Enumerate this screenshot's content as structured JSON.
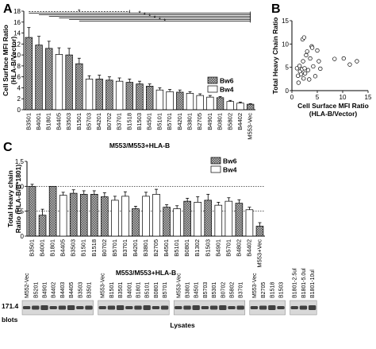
{
  "panel_labels": {
    "A": "A",
    "B": "B",
    "C": "C"
  },
  "colors": {
    "bw6": "#8a8a8a",
    "bw4": "#ffffff",
    "axis": "#000000",
    "blot_bg": "#d8d8d8",
    "band": "#1a1a1a"
  },
  "chart_data": [
    {
      "panel": "A",
      "type": "bar",
      "ylabel": "Cell Surface MFI Ratio (HLA-B/Vector)",
      "ylabel_lines": [
        "Cell Surface MFI Ratio",
        "(HLA-B/Vector)"
      ],
      "xlabel": "M553/M553+HLA-B",
      "ylim": [
        0,
        18
      ],
      "yticks": [
        0,
        2,
        4,
        6,
        8,
        10,
        12,
        14,
        16,
        18
      ],
      "legend": {
        "position": "right",
        "entries": [
          "Bw6",
          "Bw4"
        ]
      },
      "significance_marker": "*",
      "categories": [
        "B3501",
        "B4001",
        "B1801",
        "B4405",
        "B3503",
        "B1501",
        "B5703",
        "B4201",
        "B0702",
        "B3701",
        "B1518",
        "B1503",
        "B4501",
        "B5101",
        "B5701",
        "B4201",
        "B3801",
        "B2705",
        "B4901",
        "B0801",
        "B5802",
        "B4402",
        "M553-Vec"
      ],
      "bw_group": [
        "Bw6",
        "Bw6",
        "Bw6",
        "Bw4",
        "Bw6",
        "Bw6",
        "Bw4",
        "Bw6",
        "Bw6",
        "Bw4",
        "Bw6",
        "Bw6",
        "Bw6",
        "Bw4",
        "Bw4",
        "Bw6",
        "Bw4",
        "Bw4",
        "Bw4",
        "Bw6",
        "Bw4",
        "Bw4",
        "Bw6"
      ],
      "values": [
        13.2,
        11.8,
        11.2,
        10.1,
        10.0,
        8.4,
        5.6,
        5.6,
        5.4,
        5.2,
        5.0,
        4.7,
        4.3,
        3.6,
        3.3,
        3.2,
        3.0,
        2.6,
        2.3,
        2.2,
        1.5,
        1.2,
        1.0
      ],
      "errors": [
        1.8,
        1.6,
        1.3,
        1.2,
        1.2,
        1.0,
        0.6,
        0.7,
        0.6,
        0.6,
        0.6,
        0.5,
        0.4,
        0.4,
        0.4,
        0.4,
        0.3,
        0.3,
        0.3,
        0.2,
        0.2,
        0.2,
        0.1
      ]
    },
    {
      "panel": "B",
      "type": "scatter",
      "xlabel": "Cell Surface MFI Ratio (HLA-B/Vector)",
      "xlabel_lines": [
        "Cell Surface MFI Ratio",
        "(HLA-B/Vector)"
      ],
      "ylabel": "Total Heavy Chain Ratio",
      "xlim": [
        0,
        15
      ],
      "ylim": [
        0,
        15
      ],
      "xticks": [
        0,
        5,
        10,
        15
      ],
      "yticks": [
        0,
        5,
        10,
        15
      ],
      "points": [
        {
          "x": 1.0,
          "y": 4.8
        },
        {
          "x": 1.2,
          "y": 3.2
        },
        {
          "x": 1.3,
          "y": 1.7
        },
        {
          "x": 1.5,
          "y": 5.3
        },
        {
          "x": 1.6,
          "y": 4.1
        },
        {
          "x": 1.8,
          "y": 3.5
        },
        {
          "x": 2.0,
          "y": 4.6
        },
        {
          "x": 2.1,
          "y": 11.0
        },
        {
          "x": 2.2,
          "y": 6.3
        },
        {
          "x": 2.3,
          "y": 2.6
        },
        {
          "x": 2.5,
          "y": 4.8
        },
        {
          "x": 2.6,
          "y": 3.7
        },
        {
          "x": 2.8,
          "y": 7.6
        },
        {
          "x": 3.0,
          "y": 8.4
        },
        {
          "x": 3.2,
          "y": 4.4
        },
        {
          "x": 3.4,
          "y": 2.4
        },
        {
          "x": 3.6,
          "y": 6.9
        },
        {
          "x": 3.9,
          "y": 9.5
        },
        {
          "x": 4.2,
          "y": 5.2
        },
        {
          "x": 4.6,
          "y": 3.1
        },
        {
          "x": 5.0,
          "y": 8.6
        },
        {
          "x": 5.3,
          "y": 6.3
        },
        {
          "x": 5.6,
          "y": 4.7
        },
        {
          "x": 8.4,
          "y": 6.8
        },
        {
          "x": 10.2,
          "y": 6.9
        },
        {
          "x": 11.4,
          "y": 5.6
        },
        {
          "x": 12.8,
          "y": 6.3
        },
        {
          "x": 2.4,
          "y": 11.4
        },
        {
          "x": 4.0,
          "y": 9.2
        }
      ]
    },
    {
      "panel": "C",
      "type": "bar",
      "ylabel": "Total Heavy chain Ratio (HLA-B/B*1801)",
      "ylabel_lines": [
        "Total Heavy chain",
        "Ratio (HLA-B/B*1801)"
      ],
      "xlabel": "M553/M553+HLA-B",
      "ylim": [
        0,
        1.5
      ],
      "yticks": [
        0,
        0.5,
        1.0,
        1.5
      ],
      "ytick_labels": [
        "0",
        "0.5",
        "1.0",
        "1.5"
      ],
      "legend": {
        "position": "top-right",
        "entries": [
          "Bw6",
          "Bw4"
        ]
      },
      "reference_lines": [
        1.0,
        0.5
      ],
      "categories": [
        "B3501",
        "B4001",
        "B1801",
        "B4405",
        "B3503",
        "B1501",
        "B1518",
        "B0702",
        "B5701",
        "B3701",
        "B4201",
        "B3801",
        "B2705",
        "B4501",
        "B5101",
        "B0801",
        "B1302",
        "B1503",
        "B4901",
        "B5701",
        "B4802",
        "B4402",
        "M553+Vec"
      ],
      "bw_group": [
        "Bw6",
        "Bw6",
        "Bw6",
        "Bw4",
        "Bw6",
        "Bw6",
        "Bw6",
        "Bw6",
        "Bw4",
        "Bw4",
        "Bw6",
        "Bw4",
        "Bw4",
        "Bw6",
        "Bw4",
        "Bw6",
        "Bw4",
        "Bw6",
        "Bw4",
        "Bw4",
        "Bw6",
        "Bw4",
        "Bw6"
      ],
      "values": [
        1.0,
        0.42,
        1.0,
        0.82,
        0.86,
        0.84,
        0.84,
        0.79,
        0.72,
        0.8,
        0.55,
        0.8,
        0.84,
        0.58,
        0.55,
        0.7,
        0.68,
        0.72,
        0.62,
        0.7,
        0.66,
        0.53,
        0.2
      ],
      "errors": [
        0.04,
        0.12,
        0.0,
        0.06,
        0.07,
        0.07,
        0.07,
        0.08,
        0.08,
        0.09,
        0.05,
        0.08,
        0.1,
        0.05,
        0.06,
        0.06,
        0.11,
        0.12,
        0.06,
        0.07,
        0.07,
        0.05,
        0.07
      ]
    }
  ],
  "blots": {
    "row_label": "171.4",
    "row_label2": "blots",
    "xlabel": "Lysates",
    "groups": [
      {
        "lanes": [
          "M552-Vec",
          "B5201",
          "B4901",
          "B4402",
          "B4403",
          "B4405",
          "B3503",
          "B3501"
        ]
      },
      {
        "lanes": [
          "M553-Vec",
          "B1501",
          "B3501",
          "B4001",
          "B1801",
          "B5101",
          "B0801",
          "B5701"
        ]
      },
      {
        "lanes": [
          "M553-Vec",
          "B3801",
          "B4501",
          "B5703",
          "B5301",
          "B0702",
          "B5802",
          "B3701"
        ]
      },
      {
        "lanes": [
          "M553-Vec",
          "B2705",
          "B1518",
          "B1503"
        ]
      },
      {
        "lanes": [
          "B1801-2.5ul",
          "B1801-5.0ul",
          "B1801-10ul"
        ]
      }
    ]
  }
}
